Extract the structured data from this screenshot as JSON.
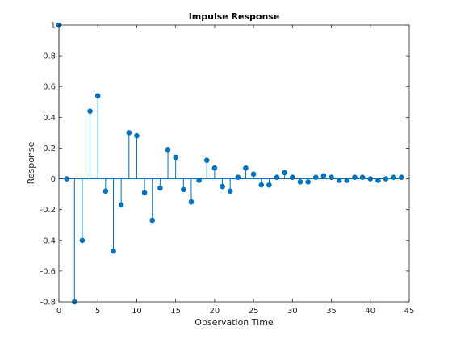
{
  "chart_data": {
    "type": "stem",
    "title": "Impulse Response",
    "xlabel": "Observation Time",
    "ylabel": "Response",
    "xlim": [
      0,
      45
    ],
    "ylim": [
      -0.8,
      1
    ],
    "xticks": [
      "0",
      "5",
      "10",
      "15",
      "20",
      "25",
      "30",
      "35",
      "40",
      "45"
    ],
    "yticks": [
      "-0.8",
      "-0.6",
      "-0.4",
      "-0.2",
      "0",
      "0.2",
      "0.4",
      "0.6",
      "0.8",
      "1"
    ],
    "grid": false,
    "series": [
      {
        "color": "#0072bd",
        "x": [
          0,
          1,
          2,
          3,
          4,
          5,
          6,
          7,
          8,
          9,
          10,
          11,
          12,
          13,
          14,
          15,
          16,
          17,
          18,
          19,
          20,
          21,
          22,
          23,
          24,
          25,
          26,
          27,
          28,
          29,
          30,
          31,
          32,
          33,
          34,
          35,
          36,
          37,
          38,
          39,
          40,
          41,
          42,
          43,
          44
        ],
        "values": [
          1.0,
          0.0,
          -0.8,
          -0.4,
          0.44,
          0.54,
          -0.08,
          -0.47,
          -0.17,
          0.3,
          0.28,
          -0.09,
          -0.27,
          -0.06,
          0.19,
          0.14,
          -0.07,
          -0.15,
          -0.01,
          0.12,
          0.07,
          -0.05,
          -0.08,
          0.01,
          0.07,
          0.03,
          -0.04,
          -0.04,
          0.01,
          0.04,
          0.01,
          -0.02,
          -0.02,
          0.01,
          0.02,
          0.01,
          -0.01,
          -0.01,
          0.01,
          0.01,
          0.0,
          -0.01,
          0.0,
          0.01,
          0.01
        ]
      }
    ]
  }
}
